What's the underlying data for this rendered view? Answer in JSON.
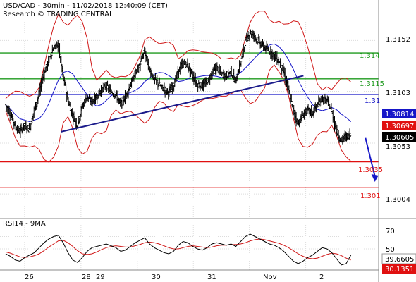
{
  "chart_data": [
    {
      "type": "candlestick",
      "title": "USD/CAD - 30min - 11/02/2018 12:40:09 (CET)",
      "subtitle": "Research © TRADING CENTRAL",
      "y_ticks": [
        "1.3152",
        "1.3103",
        "1.3053",
        "1.3004"
      ],
      "ylim": [
        1.2983,
        1.3172
      ],
      "x_ticks": [
        "26",
        "28",
        "29",
        "30",
        "31",
        "Nov",
        "2"
      ],
      "grid": true,
      "horizontal_levels": [
        {
          "label": "1.314",
          "value": 1.314,
          "color": "#1e9a1e"
        },
        {
          "label": "1.3115",
          "value": 1.3115,
          "color": "#1e9a1e"
        },
        {
          "label": "1.31",
          "value": 1.31,
          "color": "#1616c8"
        },
        {
          "label": "1.3035",
          "value": 1.3035,
          "color": "#e01010"
        },
        {
          "label": "1.301",
          "value": 1.301,
          "color": "#e01010"
        }
      ],
      "value_badges": [
        {
          "label": "1.30814",
          "value": 1.30814,
          "fill": "#1616c8",
          "text_color": "#ffffff"
        },
        {
          "label": "1.30697",
          "value": 1.30697,
          "fill": "#e01010",
          "text_color": "#ffffff"
        },
        {
          "label": "1.30605",
          "value": 1.30605,
          "fill": "#000000",
          "text_color": "#ffffff"
        }
      ],
      "trendline": {
        "from": [
          0.155,
          1.3064
        ],
        "to": [
          0.8,
          1.3118
        ],
        "color": "#1a1a8a"
      },
      "forecast_arrow": {
        "from": [
          0.965,
          1.3058
        ],
        "to": [
          0.99,
          1.3017
        ],
        "color": "#1616c8"
      },
      "price_path": [
        1.309,
        1.3082,
        1.307,
        1.3064,
        1.307,
        1.3066,
        1.3085,
        1.31,
        1.312,
        1.3132,
        1.3145,
        1.3148,
        1.3118,
        1.3095,
        1.308,
        1.307,
        1.3088,
        1.3098,
        1.3093,
        1.3097,
        1.3105,
        1.3108,
        1.3103,
        1.31,
        1.309,
        1.3098,
        1.3108,
        1.312,
        1.3128,
        1.3142,
        1.3125,
        1.3115,
        1.311,
        1.3105,
        1.3102,
        1.3108,
        1.3122,
        1.313,
        1.3128,
        1.3118,
        1.311,
        1.3108,
        1.3112,
        1.312,
        1.3126,
        1.312,
        1.3118,
        1.3122,
        1.3112,
        1.313,
        1.315,
        1.316,
        1.3156,
        1.315,
        1.3145,
        1.3142,
        1.3138,
        1.3132,
        1.3122,
        1.3105,
        1.3085,
        1.3072,
        1.308,
        1.3085,
        1.3082,
        1.309,
        1.3096,
        1.3094,
        1.3085,
        1.3065,
        1.3055,
        1.306,
        1.3061
      ],
      "series": [
        {
          "name": "Price",
          "color": "#000000"
        },
        {
          "name": "MA",
          "color": "#1616c8"
        },
        {
          "name": "Bollinger Bands",
          "color": "#d01818"
        }
      ],
      "colors": {
        "background": "#ffffff",
        "grid": "#dcdcdc",
        "text": "#000000"
      }
    },
    {
      "type": "line",
      "title": "RSI14 - 9MA",
      "y_ticks": [
        "70",
        "50"
      ],
      "ylim": [
        18,
        90
      ],
      "value_badges": [
        {
          "label": "39.6605",
          "value": 39.66,
          "fill": "#ffffff",
          "text_color": "#000000"
        },
        {
          "label": "30.1351",
          "value": 30.14,
          "fill": "#e01010",
          "text_color": "#ffffff"
        }
      ],
      "series": [
        {
          "name": "RSI",
          "color": "#000000",
          "values": [
            42,
            38,
            32,
            30,
            36,
            40,
            44,
            52,
            60,
            66,
            70,
            72,
            60,
            44,
            32,
            28,
            36,
            46,
            52,
            54,
            56,
            58,
            55,
            52,
            46,
            48,
            54,
            60,
            64,
            68,
            58,
            52,
            48,
            44,
            42,
            46,
            56,
            62,
            60,
            54,
            50,
            48,
            52,
            58,
            60,
            58,
            56,
            58,
            54,
            62,
            70,
            74,
            70,
            66,
            62,
            58,
            56,
            52,
            46,
            38,
            30,
            26,
            30,
            36,
            40,
            46,
            52,
            50,
            44,
            34,
            24,
            26,
            40
          ]
        },
        {
          "name": "MA",
          "color": "#d01818",
          "values": [
            45,
            43,
            40,
            37,
            36,
            37,
            39,
            42,
            47,
            53,
            58,
            63,
            64,
            60,
            54,
            47,
            42,
            41,
            42,
            45,
            49,
            52,
            54,
            55,
            54,
            53,
            53,
            55,
            57,
            60,
            61,
            60,
            58,
            55,
            52,
            50,
            50,
            52,
            54,
            55,
            54,
            53,
            52,
            53,
            55,
            56,
            56,
            57,
            57,
            58,
            60,
            63,
            65,
            66,
            65,
            63,
            61,
            59,
            56,
            52,
            47,
            42,
            38,
            35,
            34,
            35,
            38,
            41,
            43,
            42,
            39,
            35,
            32
          ]
        }
      ],
      "colors": {
        "background": "#ffffff",
        "grid": "#dcdcdc"
      }
    }
  ]
}
